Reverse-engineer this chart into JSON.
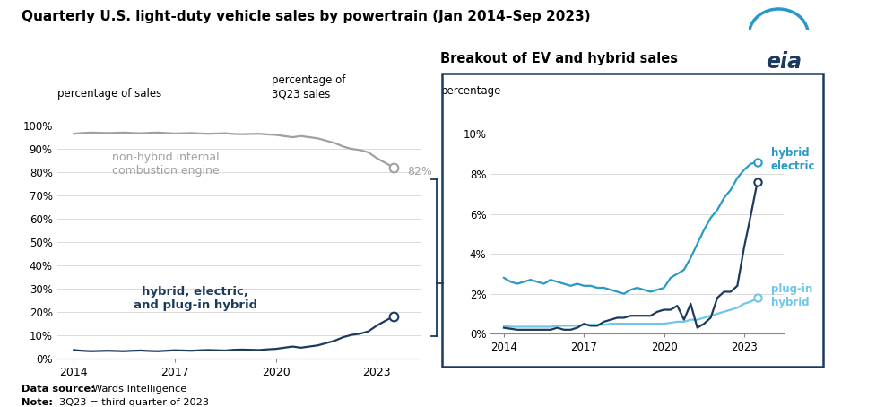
{
  "title": "Quarterly U.S. light-duty vehicle sales by powertrain (Jan 2014–Sep 2023)",
  "ylabel_left": "percentage of sales",
  "ylabel_right_top": "percentage of",
  "ylabel_right_top2": "3Q23 sales",
  "footnote_bold": "Data source: ",
  "footnote_normal": "Wards Intelligence",
  "footnote2_bold": "Note: ",
  "footnote2_normal": "3Q23 = third quarter of 2023",
  "bg_color": "#ffffff",
  "inset_title": "Breakout of EV and hybrid sales",
  "inset_ylabel": "percentage",
  "x_years": [
    2014.0,
    2014.25,
    2014.5,
    2014.75,
    2015.0,
    2015.25,
    2015.5,
    2015.75,
    2016.0,
    2016.25,
    2016.5,
    2016.75,
    2017.0,
    2017.25,
    2017.5,
    2017.75,
    2018.0,
    2018.25,
    2018.5,
    2018.75,
    2019.0,
    2019.25,
    2019.5,
    2019.75,
    2020.0,
    2020.25,
    2020.5,
    2020.75,
    2021.0,
    2021.25,
    2021.5,
    2021.75,
    2022.0,
    2022.25,
    2022.5,
    2022.75,
    2023.0,
    2023.25,
    2023.5
  ],
  "ice_pct": [
    96.5,
    96.8,
    97.0,
    96.9,
    96.8,
    96.9,
    97.0,
    96.8,
    96.7,
    96.9,
    97.0,
    96.8,
    96.6,
    96.7,
    96.8,
    96.6,
    96.5,
    96.6,
    96.7,
    96.4,
    96.3,
    96.4,
    96.5,
    96.2,
    96.0,
    95.5,
    95.0,
    95.5,
    95.0,
    94.5,
    93.5,
    92.5,
    91.0,
    90.0,
    89.5,
    88.5,
    86.0,
    84.0,
    82.0
  ],
  "combined_pct": [
    3.5,
    3.2,
    3.0,
    3.1,
    3.2,
    3.1,
    3.0,
    3.2,
    3.3,
    3.1,
    3.0,
    3.2,
    3.4,
    3.3,
    3.2,
    3.4,
    3.5,
    3.4,
    3.3,
    3.6,
    3.7,
    3.6,
    3.5,
    3.8,
    4.0,
    4.5,
    5.0,
    4.5,
    5.0,
    5.5,
    6.5,
    7.5,
    9.0,
    10.0,
    10.5,
    11.5,
    14.0,
    16.0,
    18.0
  ],
  "hybrid_pct": [
    2.8,
    2.6,
    2.5,
    2.6,
    2.7,
    2.6,
    2.5,
    2.7,
    2.6,
    2.5,
    2.4,
    2.5,
    2.4,
    2.4,
    2.3,
    2.3,
    2.2,
    2.1,
    2.0,
    2.2,
    2.3,
    2.2,
    2.1,
    2.2,
    2.3,
    2.8,
    3.0,
    3.2,
    3.8,
    4.5,
    5.2,
    5.8,
    6.2,
    6.8,
    7.2,
    7.8,
    8.2,
    8.5,
    8.6
  ],
  "phev_pct": [
    0.4,
    0.35,
    0.35,
    0.35,
    0.35,
    0.35,
    0.35,
    0.35,
    0.4,
    0.4,
    0.4,
    0.4,
    0.45,
    0.45,
    0.45,
    0.45,
    0.5,
    0.5,
    0.5,
    0.5,
    0.5,
    0.5,
    0.5,
    0.5,
    0.5,
    0.55,
    0.6,
    0.6,
    0.7,
    0.7,
    0.8,
    0.9,
    1.0,
    1.1,
    1.2,
    1.3,
    1.5,
    1.6,
    1.8
  ],
  "ev_pct": [
    0.3,
    0.25,
    0.2,
    0.2,
    0.2,
    0.2,
    0.2,
    0.2,
    0.3,
    0.2,
    0.2,
    0.3,
    0.5,
    0.4,
    0.4,
    0.6,
    0.7,
    0.8,
    0.8,
    0.9,
    0.9,
    0.9,
    0.9,
    1.1,
    1.2,
    1.2,
    1.4,
    0.7,
    1.5,
    0.3,
    0.5,
    0.8,
    1.8,
    2.1,
    2.1,
    2.4,
    4.3,
    5.9,
    7.6
  ],
  "ice_color": "#a0a0a0",
  "combined_color": "#1b3a5e",
  "hybrid_color": "#2999c8",
  "ev_color": "#1b3a5e",
  "phev_color": "#6ec6e8",
  "border_color": "#1b3a5e",
  "x_ticks": [
    2014,
    2017,
    2020,
    2023
  ],
  "y_ticks_main": [
    0,
    10,
    20,
    30,
    40,
    50,
    60,
    70,
    80,
    90,
    100
  ],
  "y_ticks_inset": [
    0,
    2,
    4,
    6,
    8,
    10
  ]
}
